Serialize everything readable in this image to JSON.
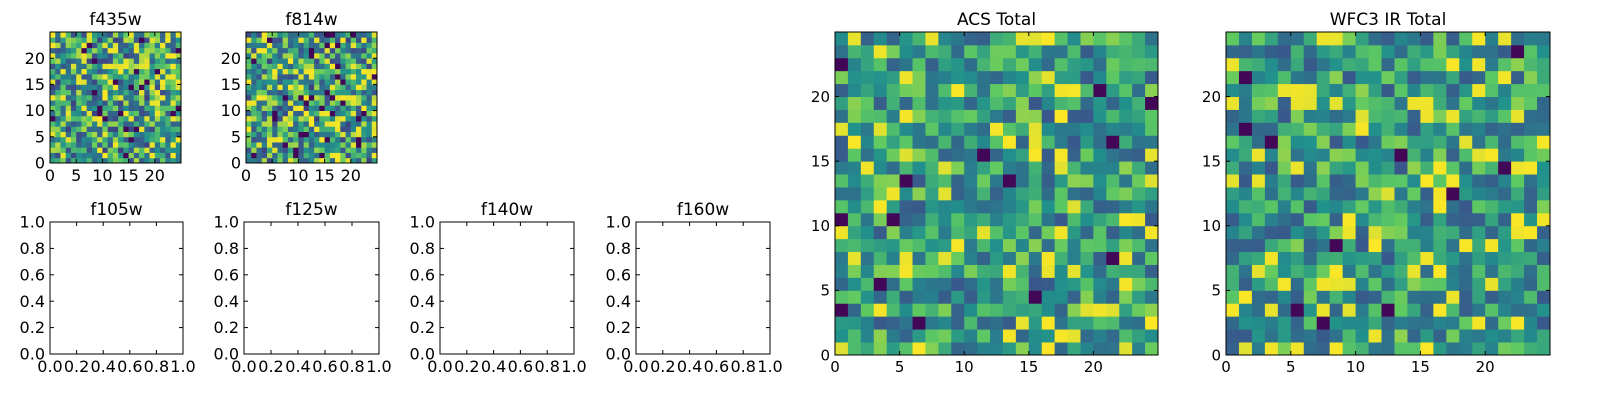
{
  "figure": {
    "background": "#ffffff",
    "colormap": [
      "#440154",
      "#3b528b",
      "#21918c",
      "#5ec962",
      "#fde725"
    ]
  },
  "chart_data": [
    {
      "id": "f435w",
      "type": "heatmap",
      "title": "f435w",
      "xlabel": "",
      "ylabel": "",
      "xlim": [
        0,
        25
      ],
      "ylim": [
        0,
        25
      ],
      "xticks": [
        0,
        5,
        10,
        15,
        20
      ],
      "yticks": [
        0,
        5,
        10,
        15,
        20
      ],
      "grid_size": 25,
      "seed": 11,
      "smooth": false,
      "grid": false
    },
    {
      "id": "f814w",
      "type": "heatmap",
      "title": "f814w",
      "xlabel": "",
      "ylabel": "",
      "xlim": [
        0,
        25
      ],
      "ylim": [
        0,
        25
      ],
      "xticks": [
        0,
        5,
        10,
        15,
        20
      ],
      "yticks": [
        0,
        5,
        10,
        15,
        20
      ],
      "grid_size": 25,
      "seed": 23,
      "smooth": false,
      "grid": false
    },
    {
      "id": "f105w",
      "type": "empty",
      "title": "f105w",
      "xlim": [
        0.0,
        1.0
      ],
      "ylim": [
        0.0,
        1.0
      ],
      "xticks": [
        "0.0",
        "0.2",
        "0.4",
        "0.6",
        "0.8",
        "1.0"
      ],
      "yticks": [
        "0.0",
        "0.2",
        "0.4",
        "0.6",
        "0.8",
        "1.0"
      ],
      "grid": false
    },
    {
      "id": "f125w",
      "type": "empty",
      "title": "f125w",
      "xlim": [
        0.0,
        1.0
      ],
      "ylim": [
        0.0,
        1.0
      ],
      "xticks": [
        "0.0",
        "0.2",
        "0.4",
        "0.6",
        "0.8",
        "1.0"
      ],
      "yticks": [
        "0.0",
        "0.2",
        "0.4",
        "0.6",
        "0.8",
        "1.0"
      ],
      "grid": false
    },
    {
      "id": "f140w",
      "type": "empty",
      "title": "f140w",
      "xlim": [
        0.0,
        1.0
      ],
      "ylim": [
        0.0,
        1.0
      ],
      "xticks": [
        "0.0",
        "0.2",
        "0.4",
        "0.6",
        "0.8",
        "1.0"
      ],
      "yticks": [
        "0.0",
        "0.2",
        "0.4",
        "0.6",
        "0.8",
        "1.0"
      ],
      "grid": false
    },
    {
      "id": "f160w",
      "type": "empty",
      "title": "f160w",
      "xlim": [
        0.0,
        1.0
      ],
      "ylim": [
        0.0,
        1.0
      ],
      "xticks": [
        "0.0",
        "0.2",
        "0.4",
        "0.6",
        "0.8",
        "1.0"
      ],
      "yticks": [
        "0.0",
        "0.2",
        "0.4",
        "0.6",
        "0.8",
        "1.0"
      ],
      "grid": false
    },
    {
      "id": "acs_total",
      "type": "heatmap",
      "title": "ACS Total",
      "xlabel": "",
      "ylabel": "",
      "xlim": [
        0,
        25
      ],
      "ylim": [
        0,
        25
      ],
      "xticks": [
        0,
        5,
        10,
        15,
        20
      ],
      "yticks": [
        0,
        5,
        10,
        15,
        20
      ],
      "grid_size": 25,
      "seed": 37,
      "smooth": true,
      "grid": false
    },
    {
      "id": "wfc3_ir_total",
      "type": "heatmap",
      "title": "WFC3 IR Total",
      "xlabel": "",
      "ylabel": "",
      "xlim": [
        0,
        25
      ],
      "ylim": [
        0,
        25
      ],
      "xticks": [
        0,
        5,
        10,
        15,
        20
      ],
      "yticks": [
        0,
        5,
        10,
        15,
        20
      ],
      "grid_size": 25,
      "seed": 53,
      "smooth": true,
      "grid": false
    }
  ]
}
